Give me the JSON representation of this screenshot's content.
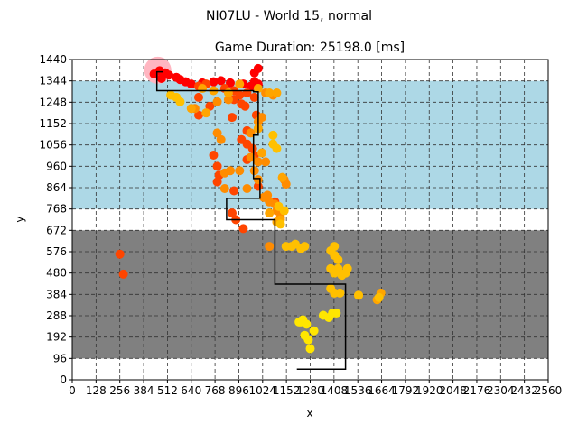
{
  "chart_data": {
    "type": "scatter",
    "suptitle": "NI07LU - World 15, normal",
    "title": "Game Duration: 25198.0 [ms]",
    "xlabel": "x",
    "ylabel": "y",
    "xlim": [
      0,
      2560
    ],
    "ylim": [
      0,
      1440
    ],
    "xticks": [
      0,
      128,
      256,
      384,
      512,
      640,
      768,
      896,
      1024,
      1152,
      1280,
      1408,
      1536,
      1664,
      1792,
      1920,
      2048,
      2176,
      2304,
      2432,
      2560
    ],
    "yticks": [
      0,
      96,
      192,
      288,
      384,
      480,
      576,
      672,
      768,
      864,
      960,
      1056,
      1152,
      1248,
      1344,
      1440
    ],
    "grid": true,
    "bands": [
      {
        "name": "upper-zone",
        "y0": 768,
        "y1": 1344,
        "color": "#add8e6"
      },
      {
        "name": "lower-zone",
        "y0": 96,
        "y1": 672,
        "color": "#808080"
      }
    ],
    "start_marker": {
      "x": 460,
      "y": 1392,
      "color": "#ffb6c1"
    },
    "path": [
      [
        1208,
        48
      ],
      [
        1470,
        48
      ],
      [
        1470,
        430
      ],
      [
        1090,
        430
      ],
      [
        1090,
        720
      ],
      [
        830,
        720
      ],
      [
        830,
        816
      ],
      [
        1010,
        816
      ],
      [
        1010,
        905
      ],
      [
        975,
        905
      ],
      [
        975,
        1100
      ],
      [
        1000,
        1100
      ],
      [
        1000,
        1295
      ],
      [
        975,
        1295
      ],
      [
        975,
        1300
      ],
      [
        455,
        1300
      ],
      [
        455,
        1385
      ],
      [
        490,
        1385
      ]
    ],
    "point_groups": [
      {
        "name": "start-cluster",
        "color": "#ff0000",
        "size": 5,
        "points": [
          [
            470,
            1390
          ],
          [
            500,
            1380
          ],
          [
            520,
            1370
          ],
          [
            480,
            1355
          ],
          [
            440,
            1375
          ],
          [
            560,
            1360
          ],
          [
            580,
            1350
          ],
          [
            610,
            1340
          ],
          [
            640,
            1330
          ],
          [
            700,
            1335
          ],
          [
            760,
            1340
          ],
          [
            800,
            1345
          ],
          [
            850,
            1335
          ],
          [
            920,
            1330
          ],
          [
            980,
            1340
          ],
          [
            1000,
            1330
          ],
          [
            960,
            1320
          ],
          [
            1000,
            1400
          ],
          [
            980,
            1380
          ]
        ]
      },
      {
        "name": "red-orange-trail",
        "color": "#ff4500",
        "size": 5,
        "points": [
          [
            680,
            1320
          ],
          [
            720,
            1330
          ],
          [
            820,
            1310
          ],
          [
            870,
            1300
          ],
          [
            900,
            1280
          ],
          [
            940,
            1290
          ],
          [
            980,
            1270
          ],
          [
            870,
            1260
          ],
          [
            910,
            1240
          ],
          [
            930,
            1230
          ],
          [
            680,
            1270
          ],
          [
            740,
            1230
          ],
          [
            680,
            1190
          ],
          [
            860,
            1180
          ],
          [
            990,
            1190
          ],
          [
            940,
            1120
          ],
          [
            910,
            1080
          ],
          [
            940,
            1060
          ],
          [
            970,
            1040
          ],
          [
            980,
            1010
          ],
          [
            940,
            990
          ],
          [
            760,
            1010
          ],
          [
            780,
            960
          ],
          [
            790,
            920
          ],
          [
            780,
            890
          ],
          [
            870,
            850
          ],
          [
            1000,
            870
          ],
          [
            1090,
            800
          ],
          [
            860,
            750
          ],
          [
            880,
            720
          ],
          [
            920,
            680
          ],
          [
            256,
            565
          ],
          [
            275,
            475
          ]
        ]
      },
      {
        "name": "orange-trail",
        "color": "#ff8c00",
        "size": 5,
        "points": [
          [
            780,
            1250
          ],
          [
            840,
            1260
          ],
          [
            1040,
            1290
          ],
          [
            1080,
            1280
          ],
          [
            780,
            1110
          ],
          [
            800,
            1080
          ],
          [
            960,
            1110
          ],
          [
            1000,
            1160
          ],
          [
            1020,
            1180
          ],
          [
            960,
            1000
          ],
          [
            1000,
            980
          ],
          [
            1040,
            980
          ],
          [
            820,
            930
          ],
          [
            850,
            940
          ],
          [
            900,
            940
          ],
          [
            980,
            940
          ],
          [
            1000,
            900
          ],
          [
            820,
            860
          ],
          [
            940,
            860
          ],
          [
            1030,
            820
          ],
          [
            1050,
            830
          ],
          [
            1140,
            900
          ],
          [
            1150,
            880
          ],
          [
            1090,
            790
          ],
          [
            1100,
            760
          ],
          [
            1120,
            730
          ],
          [
            1060,
            800
          ],
          [
            660,
            1220
          ],
          [
            1060,
            600
          ],
          [
            1540,
            380
          ]
        ]
      },
      {
        "name": "amber-trail",
        "color": "#ffa500",
        "size": 5,
        "points": [
          [
            700,
            1310
          ],
          [
            760,
            1300
          ],
          [
            840,
            1290
          ],
          [
            900,
            1330
          ],
          [
            1000,
            1310
          ],
          [
            1060,
            1290
          ],
          [
            1100,
            1290
          ],
          [
            640,
            1220
          ],
          [
            720,
            1200
          ],
          [
            1000,
            1130
          ],
          [
            1020,
            1020
          ],
          [
            1130,
            910
          ],
          [
            1060,
            750
          ],
          [
            1100,
            710
          ],
          [
            1120,
            720
          ],
          [
            1640,
            360
          ],
          [
            1660,
            390
          ]
        ]
      },
      {
        "name": "gold-trail",
        "color": "#ffc000",
        "size": 5,
        "points": [
          [
            530,
            1280
          ],
          [
            560,
            1270
          ],
          [
            580,
            1250
          ],
          [
            1080,
            1100
          ],
          [
            1080,
            1060
          ],
          [
            1100,
            1040
          ],
          [
            1110,
            780
          ],
          [
            1140,
            760
          ],
          [
            1120,
            700
          ],
          [
            1150,
            600
          ],
          [
            1180,
            600
          ],
          [
            1200,
            610
          ],
          [
            1230,
            590
          ],
          [
            1250,
            600
          ],
          [
            1390,
            580
          ],
          [
            1410,
            600
          ],
          [
            1410,
            560
          ],
          [
            1430,
            540
          ],
          [
            1390,
            500
          ],
          [
            1410,
            480
          ],
          [
            1430,
            500
          ],
          [
            1450,
            470
          ],
          [
            1470,
            480
          ],
          [
            1480,
            500
          ],
          [
            1390,
            410
          ],
          [
            1410,
            390
          ],
          [
            1440,
            390
          ],
          [
            1540,
            380
          ],
          [
            1650,
            370
          ]
        ]
      },
      {
        "name": "yellow-trail",
        "color": "#ffe600",
        "size": 5,
        "points": [
          [
            1240,
            270
          ],
          [
            1260,
            250
          ],
          [
            1220,
            260
          ],
          [
            1250,
            200
          ],
          [
            1270,
            180
          ],
          [
            1280,
            140
          ],
          [
            1300,
            220
          ],
          [
            1350,
            290
          ],
          [
            1380,
            280
          ],
          [
            1400,
            300
          ],
          [
            1420,
            300
          ],
          [
            1230,
            260
          ]
        ]
      }
    ]
  }
}
